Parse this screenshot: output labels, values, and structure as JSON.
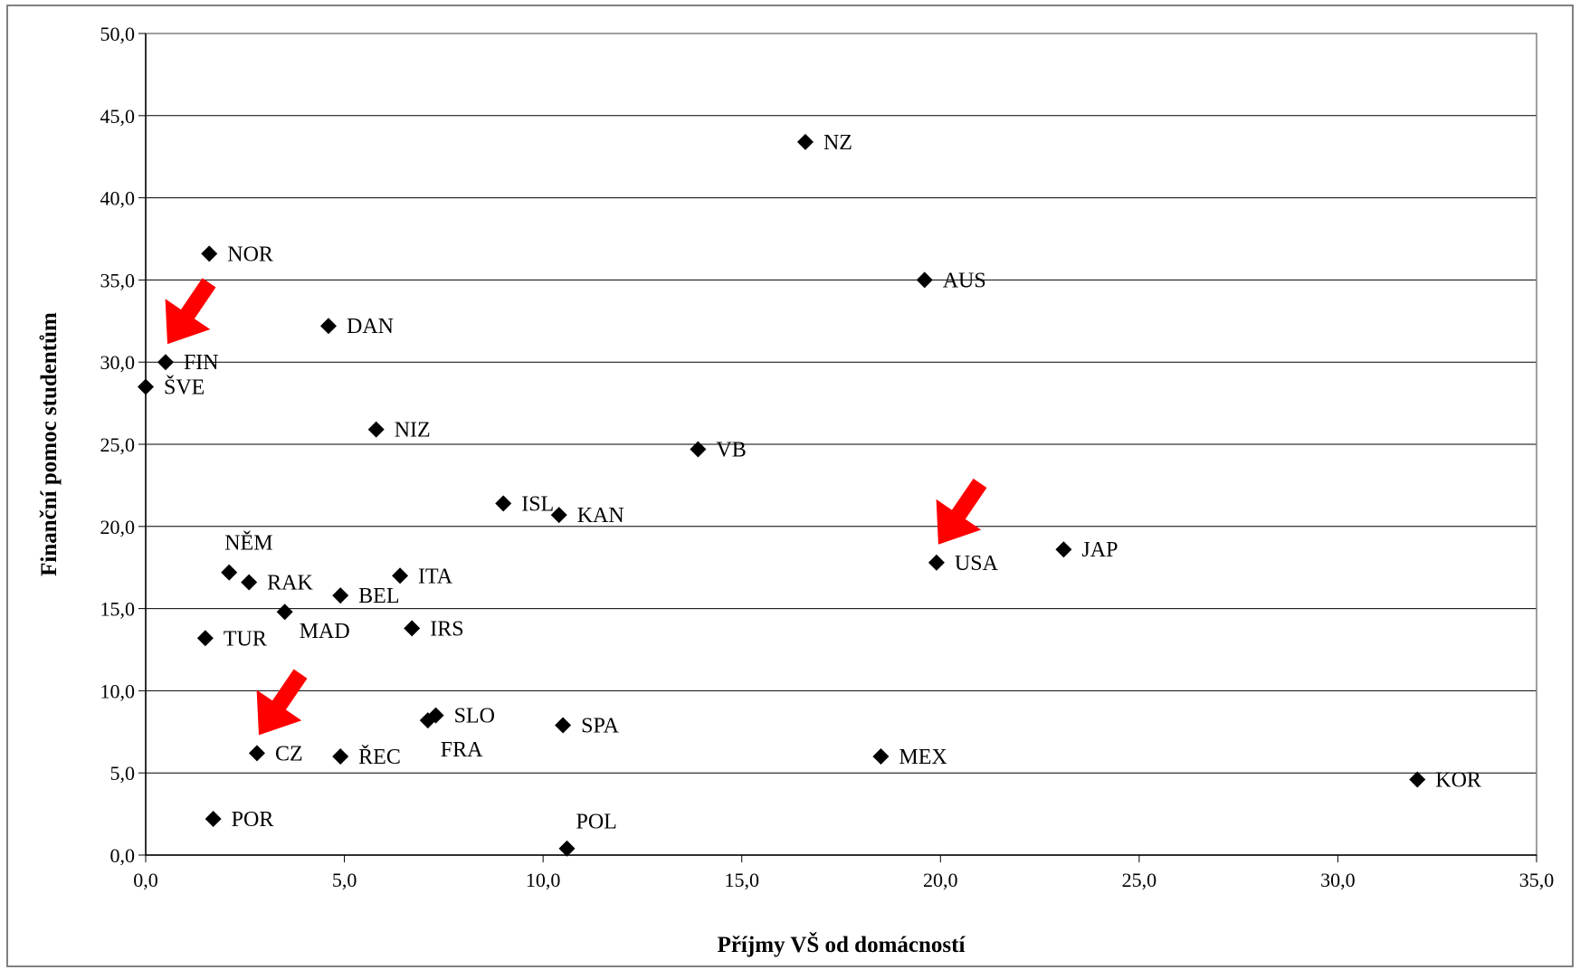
{
  "chart_data": {
    "type": "scatter",
    "xlabel": "Příjmy VŠ od domácností",
    "ylabel": "Finanční pomoc studentům",
    "xlim": [
      0,
      35
    ],
    "ylim": [
      0,
      50
    ],
    "x_ticks": [
      "0,0",
      "5,0",
      "10,0",
      "15,0",
      "20,0",
      "25,0",
      "30,0",
      "35,0"
    ],
    "y_ticks": [
      "0,0",
      "5,0",
      "10,0",
      "15,0",
      "20,0",
      "25,0",
      "30,0",
      "35,0",
      "40,0",
      "45,0",
      "50,0"
    ],
    "grid": "horizontal",
    "marker": "diamond",
    "marker_color": "#000000",
    "highlight_color": "#ff0000",
    "highlighted": [
      "FIN",
      "USA",
      "CZ"
    ],
    "points": [
      {
        "label": "NZ",
        "x": 16.6,
        "y": 43.4
      },
      {
        "label": "NOR",
        "x": 1.6,
        "y": 36.6
      },
      {
        "label": "AUS",
        "x": 19.6,
        "y": 35.0
      },
      {
        "label": "DAN",
        "x": 4.6,
        "y": 32.2
      },
      {
        "label": "FIN",
        "x": 0.5,
        "y": 30.0
      },
      {
        "label": "ŠVE",
        "x": 0.0,
        "y": 28.5
      },
      {
        "label": "NIZ",
        "x": 5.8,
        "y": 25.9
      },
      {
        "label": "VB",
        "x": 13.9,
        "y": 24.7
      },
      {
        "label": "ISL",
        "x": 9.0,
        "y": 21.4
      },
      {
        "label": "KAN",
        "x": 10.4,
        "y": 20.7
      },
      {
        "label": "JAP",
        "x": 23.1,
        "y": 18.6
      },
      {
        "label": "USA",
        "x": 19.9,
        "y": 17.8
      },
      {
        "label": "NĚM",
        "x": 2.1,
        "y": 17.2
      },
      {
        "label": "ITA",
        "x": 6.4,
        "y": 17.0
      },
      {
        "label": "RAK",
        "x": 2.6,
        "y": 16.6
      },
      {
        "label": "BEL",
        "x": 4.9,
        "y": 15.8
      },
      {
        "label": "MAD",
        "x": 3.5,
        "y": 14.8
      },
      {
        "label": "IRS",
        "x": 6.7,
        "y": 13.8
      },
      {
        "label": "TUR",
        "x": 1.5,
        "y": 13.2
      },
      {
        "label": "SLO",
        "x": 7.3,
        "y": 8.5
      },
      {
        "label": "FRA",
        "x": 7.1,
        "y": 8.2
      },
      {
        "label": "SPA",
        "x": 10.5,
        "y": 7.9
      },
      {
        "label": "CZ",
        "x": 2.8,
        "y": 6.2
      },
      {
        "label": "ŘEC",
        "x": 4.9,
        "y": 6.0
      },
      {
        "label": "MEX",
        "x": 18.5,
        "y": 6.0
      },
      {
        "label": "KOR",
        "x": 32.0,
        "y": 4.6
      },
      {
        "label": "POR",
        "x": 1.7,
        "y": 2.2
      },
      {
        "label": "POL",
        "x": 10.6,
        "y": 0.4
      }
    ]
  }
}
